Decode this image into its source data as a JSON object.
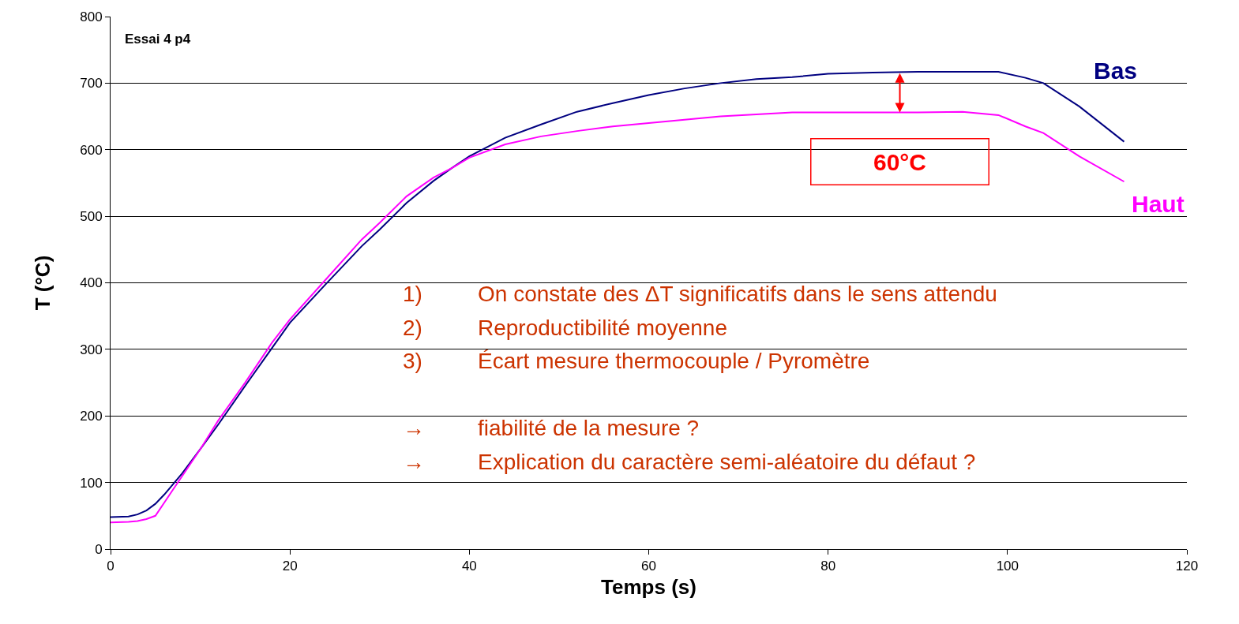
{
  "chart_data": {
    "type": "line",
    "xlabel": "Temps (s)",
    "ylabel": "T (°C)",
    "x": [
      0,
      2,
      3,
      4,
      5,
      6,
      7,
      8,
      10,
      12,
      15,
      18,
      20,
      24,
      28,
      30,
      33,
      36,
      38,
      40,
      44,
      48,
      52,
      56,
      60,
      64,
      68,
      72,
      76,
      80,
      85,
      90,
      95,
      99,
      102,
      104,
      108,
      113
    ],
    "series": [
      {
        "name": "Bas",
        "color": "#000080",
        "values": [
          48,
          49,
          52,
          58,
          68,
          82,
          98,
          114,
          150,
          187,
          245,
          302,
          340,
          398,
          455,
          480,
          520,
          553,
          572,
          590,
          618,
          638,
          657,
          670,
          682,
          692,
          700,
          706,
          709,
          714,
          716,
          717,
          717,
          717,
          708,
          700,
          665,
          612
        ]
      },
      {
        "name": "Haut",
        "color": "#ff00ff",
        "values": [
          40,
          41,
          42,
          45,
          50,
          70,
          90,
          110,
          150,
          193,
          250,
          310,
          345,
          405,
          465,
          490,
          530,
          558,
          572,
          588,
          608,
          620,
          628,
          635,
          640,
          645,
          650,
          653,
          656,
          656,
          656,
          656,
          657,
          652,
          635,
          625,
          590,
          552
        ]
      }
    ],
    "xlim": [
      0,
      120
    ],
    "xticks": [
      0,
      20,
      40,
      60,
      80,
      100,
      120
    ],
    "ylim": [
      0,
      800
    ],
    "yticks": [
      0,
      100,
      200,
      300,
      400,
      500,
      600,
      700,
      800
    ],
    "grid": "y",
    "legend": false,
    "marker": "none",
    "line_style": "solid",
    "annotations": [
      "Essai 4 p4",
      {
        "text": "60°C",
        "x": 88,
        "y": 656
      },
      "1)\tOn constate des ΔT significatifs dans le sens attendu",
      "2)\tReproductibilité moyenne",
      "3)\tÉcart mesure thermocouple / Pyromètre",
      "→\tfiabilité de la mesure ?",
      "→\tExplication du caractère semi-aléatoire du défaut ?"
    ]
  }
}
